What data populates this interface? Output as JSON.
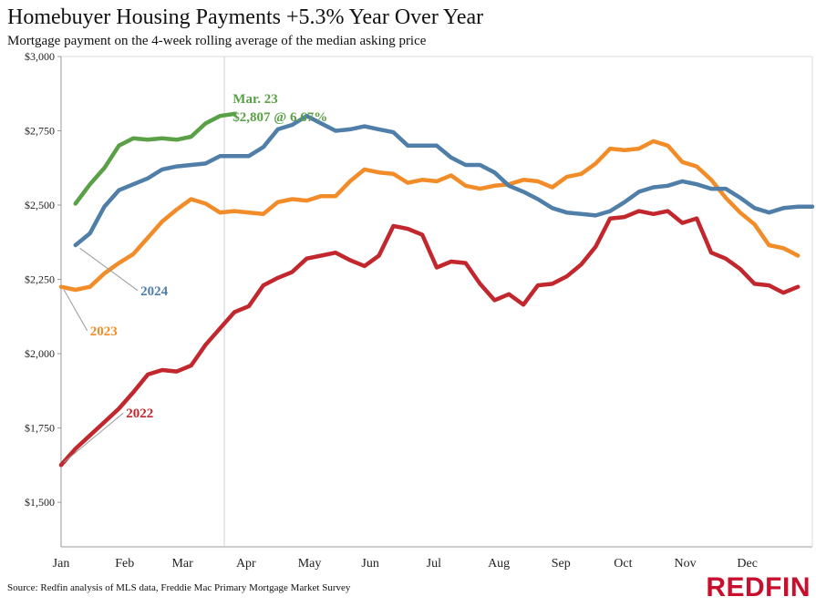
{
  "header": {
    "title": "Homebuyer Housing Payments +5.3% Year Over Year",
    "subtitle": "Mortgage payment on the 4-week rolling average of the median asking price"
  },
  "footer": {
    "source": "Source: Redfin analysis of MLS data, Freddie Mac Primary Mortgage Market Survey",
    "logo": "REDFIN"
  },
  "chart_data": {
    "type": "line",
    "title": "Homebuyer Housing Payments +5.3% Year Over Year",
    "subtitle": "Mortgage payment on the 4-week rolling average of the median asking price",
    "xlabel": "",
    "ylabel": "",
    "x_unit": "week of year",
    "xlim": [
      1,
      53
    ],
    "ylim": [
      1350,
      3000
    ],
    "y_ticks": [
      {
        "value": 1500,
        "label": "$1,500"
      },
      {
        "value": 1750,
        "label": "$1,750"
      },
      {
        "value": 2000,
        "label": "$2,000"
      },
      {
        "value": 2250,
        "label": "$2,250"
      },
      {
        "value": 2500,
        "label": "$2,500"
      },
      {
        "value": 2750,
        "label": "$2,750"
      },
      {
        "value": 3000,
        "label": "$3,000"
      }
    ],
    "x_ticks": [
      {
        "value": 1,
        "label": "Jan"
      },
      {
        "value": 5.4,
        "label": "Feb"
      },
      {
        "value": 9.4,
        "label": "Mar"
      },
      {
        "value": 13.8,
        "label": "Apr"
      },
      {
        "value": 18.2,
        "label": "May"
      },
      {
        "value": 22.4,
        "label": "Jun"
      },
      {
        "value": 26.8,
        "label": "Jul"
      },
      {
        "value": 31.3,
        "label": "Aug"
      },
      {
        "value": 35.6,
        "label": "Sep"
      },
      {
        "value": 39.9,
        "label": "Oct"
      },
      {
        "value": 44.2,
        "label": "Nov"
      },
      {
        "value": 48.5,
        "label": "Dec"
      }
    ],
    "grid": false,
    "reference_line": {
      "x": 12.3
    },
    "annotation": {
      "line1": "Mar. 23",
      "line2": "$2,807 @ 6.67%",
      "x": 12,
      "y": 2807
    },
    "series": [
      {
        "name": "2022",
        "color": "#c1272d",
        "x_start": 1,
        "values": [
          1625,
          1680,
          1725,
          1770,
          1815,
          1870,
          1930,
          1945,
          1940,
          1960,
          2030,
          2085,
          2140,
          2160,
          2230,
          2255,
          2275,
          2320,
          2330,
          2340,
          2315,
          2295,
          2330,
          2430,
          2420,
          2400,
          2290,
          2310,
          2305,
          2235,
          2180,
          2200,
          2165,
          2230,
          2235,
          2260,
          2300,
          2360,
          2455,
          2460,
          2480,
          2470,
          2480,
          2440,
          2455,
          2340,
          2320,
          2285,
          2235,
          2230,
          2205,
          2225
        ],
        "label_x": 5.5,
        "label_y": 1785,
        "leader_to": [
          1.2,
          1635
        ]
      },
      {
        "name": "2023",
        "color": "#f28c28",
        "x_start": 1,
        "values": [
          2225,
          2215,
          2225,
          2270,
          2305,
          2335,
          2390,
          2445,
          2485,
          2520,
          2505,
          2475,
          2480,
          2475,
          2470,
          2510,
          2520,
          2515,
          2530,
          2530,
          2580,
          2620,
          2610,
          2605,
          2575,
          2585,
          2580,
          2600,
          2565,
          2555,
          2565,
          2570,
          2585,
          2580,
          2560,
          2595,
          2605,
          2640,
          2690,
          2685,
          2690,
          2715,
          2700,
          2645,
          2630,
          2585,
          2525,
          2475,
          2435,
          2365,
          2355,
          2330
        ],
        "label_x": 3,
        "label_y": 2062,
        "leader_to": [
          1.2,
          2215
        ]
      },
      {
        "name": "2024",
        "color": "#4f7ea8",
        "x_start": 2,
        "values": [
          2365,
          2405,
          2495,
          2550,
          2570,
          2590,
          2620,
          2630,
          2635,
          2640,
          2665,
          2665,
          2665,
          2695,
          2755,
          2770,
          2800,
          2775,
          2750,
          2755,
          2765,
          2755,
          2745,
          2700,
          2700,
          2700,
          2660,
          2635,
          2635,
          2610,
          2565,
          2545,
          2520,
          2490,
          2475,
          2470,
          2465,
          2480,
          2510,
          2545,
          2560,
          2565,
          2580,
          2570,
          2555,
          2555,
          2525,
          2490,
          2475,
          2490,
          2495,
          2495
        ],
        "label_x": 6.5,
        "label_y": 2197,
        "leader_to": [
          2.3,
          2355
        ]
      },
      {
        "name": "",
        "color": "#5aa047",
        "x_start": 2,
        "values": [
          2505,
          2570,
          2625,
          2700,
          2725,
          2720,
          2725,
          2720,
          2730,
          2775,
          2800,
          2807
        ]
      }
    ]
  }
}
